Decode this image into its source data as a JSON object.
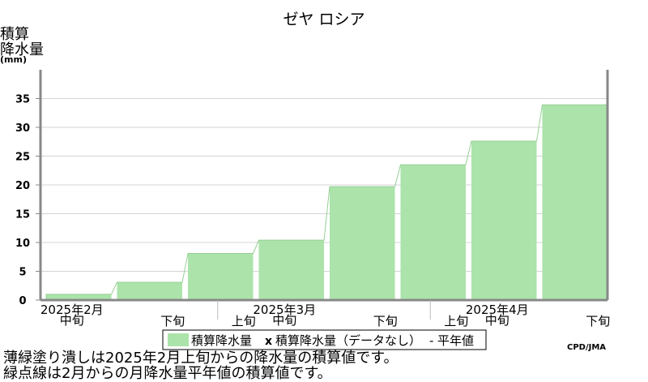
{
  "chart_data": {
    "type": "area",
    "title": "ゼヤ ロシア",
    "ylabel_lines": [
      "積算",
      "降水量",
      "(mm)"
    ],
    "ylim": [
      0,
      40
    ],
    "yticks": [
      0,
      5,
      10,
      15,
      20,
      25,
      30,
      35
    ],
    "periods": [
      {
        "month": "2025年2月",
        "dekad": "中旬"
      },
      {
        "month": "",
        "dekad": "下旬"
      },
      {
        "month": "",
        "dekad": "上旬"
      },
      {
        "month": "2025年3月",
        "dekad": "中旬"
      },
      {
        "month": "",
        "dekad": "下旬"
      },
      {
        "month": "",
        "dekad": "上旬"
      },
      {
        "month": "2025年4月",
        "dekad": "中旬"
      },
      {
        "month": "",
        "dekad": "下旬"
      }
    ],
    "series": [
      {
        "name": "積算降水量",
        "values": [
          1.0,
          3.1,
          8.1,
          10.4,
          19.7,
          23.5,
          27.6,
          33.9
        ],
        "color": "#abe3aa"
      }
    ],
    "legend": {
      "items": [
        "積算降水量",
        "積算降水量（データなし）",
        "平年値"
      ],
      "marker_missing": "x",
      "marker_normal": "-",
      "placement": "bottom"
    },
    "credit": "CPD/JMA",
    "notes": [
      "薄緑塗り潰しは2025年2月上旬からの降水量の積算値です。",
      "緑点線は2月からの月降水量平年値の積算値です。"
    ],
    "colors": {
      "grid": "#d4d4d4",
      "axis": "#888888",
      "fill": "#abe3aa"
    }
  }
}
